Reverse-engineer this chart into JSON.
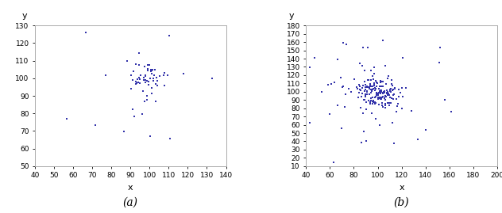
{
  "seed_a": 42,
  "seed_b": 123,
  "n_a": 72,
  "n_b": 225,
  "dot_color": "#3333aa",
  "dot_size": 2,
  "subplot_a": {
    "xlim": [
      40,
      140
    ],
    "ylim": [
      50,
      130
    ],
    "xticks": [
      40,
      50,
      60,
      70,
      80,
      90,
      100,
      110,
      120,
      130,
      140
    ],
    "yticks": [
      50,
      60,
      70,
      80,
      90,
      100,
      110,
      120,
      130
    ],
    "xlabel": "x",
    "ylabel": "y",
    "label": "(a)"
  },
  "subplot_b": {
    "xlim": [
      40,
      200
    ],
    "ylim": [
      10,
      180
    ],
    "xticks": [
      40,
      60,
      80,
      100,
      120,
      140,
      160,
      180,
      200
    ],
    "yticks": [
      10,
      20,
      30,
      40,
      50,
      60,
      70,
      80,
      90,
      100,
      110,
      120,
      130,
      140,
      150,
      160,
      170,
      180
    ],
    "xlabel": "x",
    "ylabel": "y",
    "label": "(b)"
  }
}
